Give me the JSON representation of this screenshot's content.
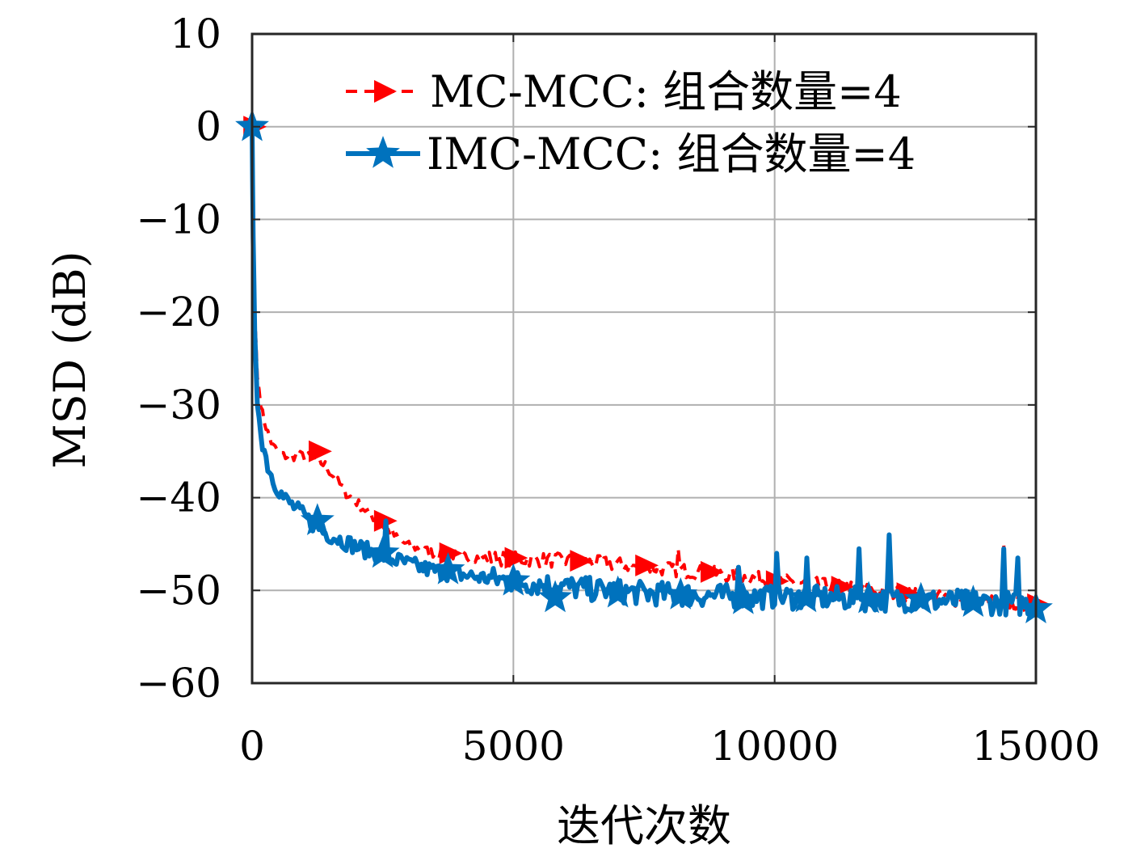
{
  "chart_data": {
    "type": "line",
    "title": "",
    "xlabel": "迭代次数",
    "ylabel": "MSD (dB)",
    "xlim": [
      0,
      15000
    ],
    "ylim": [
      -60,
      10
    ],
    "xticks": [
      0,
      5000,
      10000,
      15000
    ],
    "yticks": [
      10,
      0,
      -10,
      -20,
      -30,
      -40,
      -50,
      -60
    ],
    "xtick_labels": [
      "0",
      "5000",
      "10000",
      "15000"
    ],
    "ytick_labels": [
      "10",
      "0",
      "−10",
      "−20",
      "−30",
      "−40",
      "−50",
      "−60"
    ],
    "grid": true,
    "legend_position": "top-right",
    "series": [
      {
        "name": "MC-MCC: 组合数量=4",
        "color": "#ff0000",
        "line_style": "dashed",
        "marker": "triangle-right",
        "x": [
          0,
          20,
          50,
          100,
          200,
          300,
          400,
          600,
          800,
          1000,
          1200,
          1400,
          1600,
          1800,
          2000,
          2200,
          2400,
          2600,
          2800,
          3000,
          3200,
          3500,
          4000,
          4500,
          5000,
          5500,
          6000,
          6500,
          7000,
          7500,
          8000,
          8500,
          9000,
          9500,
          10000,
          10500,
          11000,
          11500,
          12000,
          12500,
          13000,
          13500,
          14000,
          14500,
          15000
        ],
        "y": [
          0,
          -10,
          -20,
          -27,
          -31,
          -33,
          -34.5,
          -35.5,
          -35.5,
          -35.5,
          -35.8,
          -36.5,
          -38,
          -39.5,
          -40.5,
          -41.5,
          -42.5,
          -43.5,
          -44.5,
          -45.2,
          -45.5,
          -46,
          -46.3,
          -46.5,
          -46.6,
          -46.7,
          -46.8,
          -47,
          -47.2,
          -47.5,
          -47.7,
          -48,
          -48.3,
          -48.6,
          -49,
          -49.2,
          -49.5,
          -49.8,
          -50.1,
          -50.4,
          -50.7,
          -51,
          -51.2,
          -51.4,
          -51.5
        ],
        "marker_x": [
          0,
          1250,
          2500,
          3750,
          5000,
          6250,
          7500,
          8750,
          10000,
          11250,
          12500,
          13750,
          15000
        ],
        "marker_y": [
          0,
          -35,
          -42.5,
          -46,
          -46.5,
          -46.8,
          -47.3,
          -48,
          -49,
          -49.6,
          -50.3,
          -51,
          -51.5
        ]
      },
      {
        "name": "IMC-MCC: 组合数量=4",
        "color": "#0072bd",
        "line_style": "solid",
        "marker": "star",
        "x": [
          0,
          20,
          50,
          100,
          200,
          300,
          400,
          600,
          800,
          1000,
          1200,
          1400,
          1600,
          1800,
          2000,
          2200,
          2400,
          2600,
          2800,
          3000,
          3200,
          3500,
          4000,
          4500,
          5000,
          5500,
          6000,
          6500,
          7000,
          7500,
          8000,
          8500,
          9000,
          9500,
          10000,
          10500,
          11000,
          11500,
          12000,
          12500,
          13000,
          13500,
          14000,
          14500,
          15000
        ],
        "y": [
          0,
          -12,
          -22,
          -30,
          -34,
          -36.5,
          -38,
          -40,
          -41,
          -42,
          -43,
          -43.8,
          -44.3,
          -44.8,
          -45.3,
          -45.7,
          -46,
          -46.5,
          -46.8,
          -47.2,
          -47.5,
          -47.9,
          -48.3,
          -48.7,
          -49,
          -49.3,
          -49.6,
          -49.9,
          -50.1,
          -50.3,
          -50.4,
          -50.5,
          -50.6,
          -50.7,
          -50.7,
          -50.8,
          -50.8,
          -50.9,
          -51,
          -51,
          -51.1,
          -51.2,
          -51.3,
          -51.4,
          -51.5
        ],
        "marker_x": [
          0,
          1250,
          2500,
          3750,
          5000,
          5800,
          7000,
          8200,
          9400,
          10600,
          11800,
          12800,
          13800,
          15000
        ],
        "marker_y": [
          0,
          -42.5,
          -46,
          -47.8,
          -49,
          -50.8,
          -50.3,
          -50.5,
          -51,
          -50.8,
          -50.9,
          -51,
          -51.3,
          -52
        ]
      }
    ],
    "spikes": [
      {
        "series": 1,
        "x": 2550,
        "y": -42.5
      },
      {
        "series": 1,
        "x": 9300,
        "y": -47.5
      },
      {
        "series": 1,
        "x": 10050,
        "y": -46
      },
      {
        "series": 1,
        "x": 10600,
        "y": -46.5
      },
      {
        "series": 1,
        "x": 11600,
        "y": -45.5
      },
      {
        "series": 1,
        "x": 12200,
        "y": -44
      },
      {
        "series": 1,
        "x": 14400,
        "y": -45.5
      },
      {
        "series": 1,
        "x": 14650,
        "y": -46.5
      },
      {
        "series": 0,
        "x": 8150,
        "y": -45.5
      },
      {
        "series": 0,
        "x": 14400,
        "y": -45
      }
    ]
  }
}
